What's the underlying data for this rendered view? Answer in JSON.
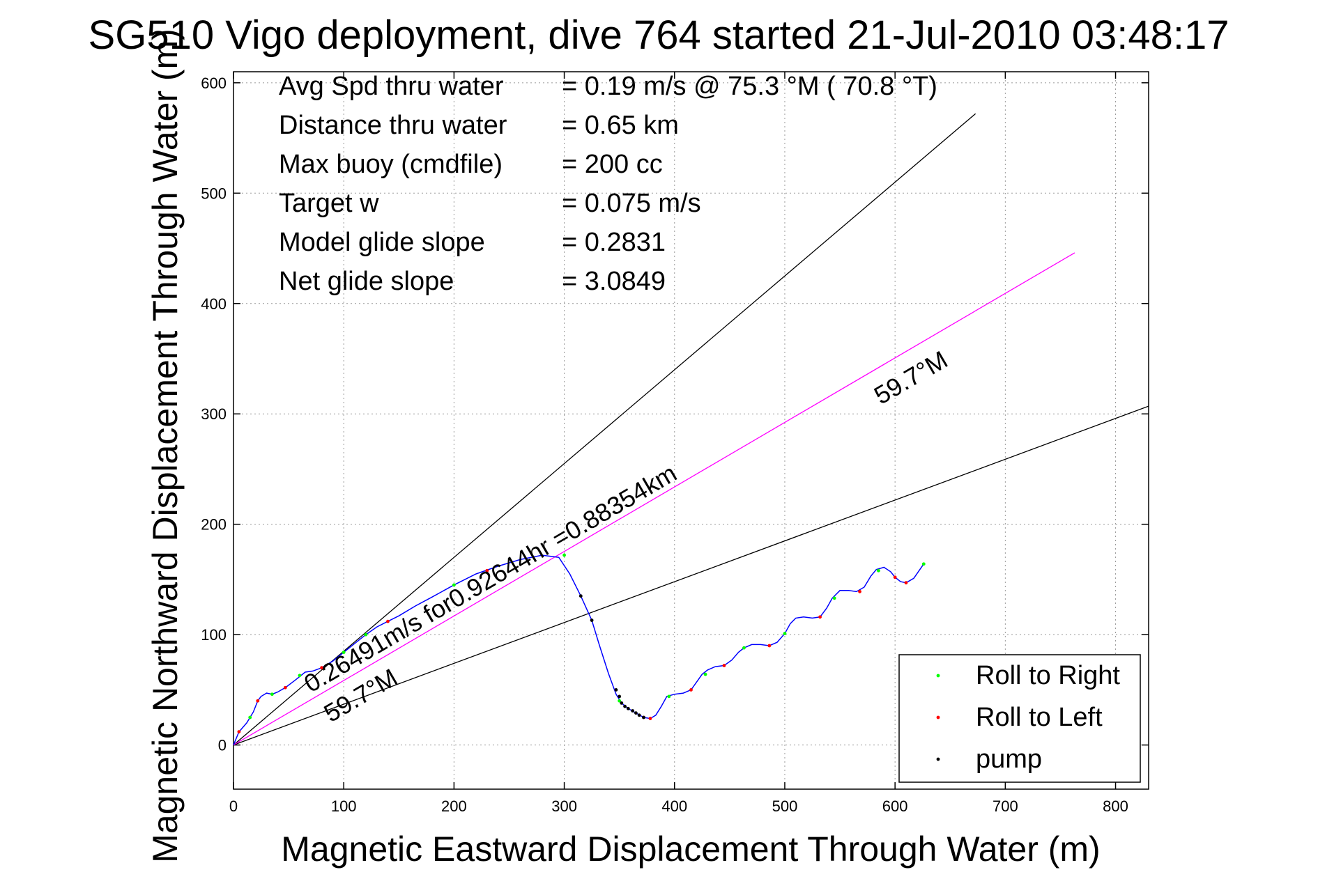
{
  "chart_data": {
    "type": "line",
    "title": "SG510 Vigo deployment, dive 764 started 21-Jul-2010 03:48:17",
    "xlabel": "Magnetic Eastward Displacement Through Water (m)",
    "ylabel": "Magnetic Northward Displacement Through Water (m)",
    "xlim": [
      0,
      830
    ],
    "ylim": [
      -40,
      610
    ],
    "xticks": [
      0,
      100,
      200,
      300,
      400,
      500,
      600,
      700,
      800
    ],
    "yticks": [
      0,
      100,
      200,
      300,
      400,
      500,
      600
    ],
    "grid": true,
    "legend_position": "bottom-right",
    "info": [
      {
        "label": "Avg Spd thru water",
        "value": "=  0.19 m/s @  75.3 °M ( 70.8 °T)"
      },
      {
        "label": "Distance thru water",
        "value": "=  0.65 km"
      },
      {
        "label": "Max buoy (cmdfile)",
        "value": "= 200 cc"
      },
      {
        "label": "Target w",
        "value": "= 0.075 m/s"
      },
      {
        "label": "Model glide slope",
        "value": "= 0.2831"
      },
      {
        "label": "Net glide slope",
        "value": "= 3.0849"
      }
    ],
    "reference_lines": [
      {
        "color": "#000000",
        "x": [
          0,
          673
        ],
        "y": [
          0,
          572
        ]
      },
      {
        "color": "#000000",
        "x": [
          0,
          830
        ],
        "y": [
          0,
          307
        ]
      },
      {
        "color": "#ff00ff",
        "x": [
          0,
          763
        ],
        "y": [
          0,
          446
        ]
      }
    ],
    "annotations": [
      {
        "text": "0.26491m/s for0.92644hr =0.88354km",
        "x": 70,
        "y": 47,
        "angle": 30.3
      },
      {
        "text": "59.7°M",
        "x": 88,
        "y": 20,
        "angle": 30.3
      },
      {
        "text": "59.7°M",
        "x": 587,
        "y": 308,
        "angle": 30.3
      }
    ],
    "series": [
      {
        "name": "track",
        "color": "#0000ff",
        "x": [
          0,
          5,
          12,
          18,
          22,
          25,
          30,
          35,
          40,
          47,
          55,
          60,
          65,
          72,
          80,
          90,
          100,
          110,
          120,
          130,
          140,
          150,
          165,
          180,
          200,
          220,
          240,
          260,
          280,
          295,
          305,
          315,
          325,
          332,
          340,
          347,
          352,
          358,
          365,
          372,
          378,
          383,
          388,
          393,
          400,
          408,
          415,
          420,
          425,
          430,
          437,
          445,
          452,
          458,
          463,
          470,
          478,
          486,
          493,
          500,
          505,
          510,
          517,
          525,
          532,
          538,
          543,
          550,
          558,
          565,
          572,
          578,
          583,
          590,
          596,
          600,
          605,
          610,
          617,
          626
        ],
        "y": [
          0,
          12,
          20,
          30,
          40,
          44,
          47,
          46,
          48,
          52,
          58,
          62,
          66,
          67,
          70,
          76,
          84,
          92,
          100,
          107,
          112,
          117,
          126,
          134,
          145,
          155,
          162,
          168,
          172,
          170,
          155,
          135,
          113,
          90,
          65,
          46,
          38,
          33,
          29,
          25,
          24,
          27,
          35,
          44,
          46,
          47,
          50,
          57,
          64,
          68,
          71,
          72,
          77,
          84,
          88,
          91,
          91,
          90,
          93,
          101,
          110,
          115,
          116,
          115,
          116,
          124,
          133,
          140,
          140,
          139,
          143,
          153,
          159,
          161,
          157,
          152,
          148,
          147,
          151,
          164
        ]
      }
    ],
    "legend": [
      {
        "label": "Roll to Right",
        "color": "#00ff00"
      },
      {
        "label": "Roll to Left",
        "color": "#ff0000"
      },
      {
        "label": "pump",
        "color": "#000000"
      }
    ],
    "markers": {
      "roll_right": {
        "color": "#00ff00",
        "x": [
          15,
          35,
          60,
          100,
          120,
          200,
          300,
          350,
          395,
          428,
          463,
          500,
          545,
          585,
          626
        ],
        "y": [
          25,
          46,
          63,
          84,
          100,
          145,
          172,
          40,
          44,
          64,
          88,
          101,
          133,
          158,
          164
        ]
      },
      "roll_left": {
        "color": "#ff0000",
        "x": [
          5,
          22,
          47,
          80,
          140,
          230,
          372,
          378,
          415,
          445,
          486,
          532,
          568,
          600,
          610
        ],
        "y": [
          12,
          40,
          52,
          70,
          112,
          158,
          25,
          24,
          50,
          72,
          90,
          116,
          139,
          152,
          147
        ]
      },
      "pump": {
        "color": "#000000",
        "x": [
          315,
          325,
          347,
          350,
          352,
          355,
          358,
          362,
          365,
          368,
          372
        ],
        "y": [
          135,
          113,
          50,
          44,
          38,
          35,
          33,
          31,
          29,
          27,
          25
        ]
      }
    }
  }
}
